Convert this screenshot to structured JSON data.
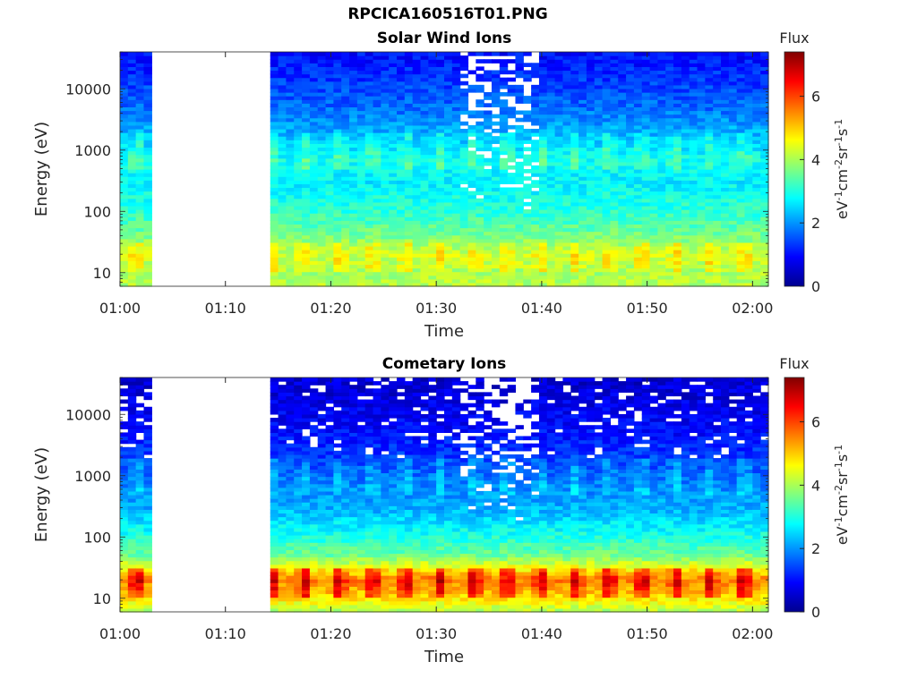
{
  "figure": {
    "title": "RPCICA160516T01.PNG"
  },
  "colorbar": {
    "label_top": "Flux",
    "label_side": "eV-1cm-2sr-1s-1",
    "ticks": [
      0,
      2,
      4,
      6
    ],
    "range": [
      0,
      7.4
    ],
    "colormap": "jet"
  },
  "chart_data": [
    {
      "type": "heatmap",
      "title": "Solar Wind Ions",
      "xlabel": "Time",
      "ylabel": "Energy (eV)",
      "x_ticks": [
        "01:00",
        "01:10",
        "01:20",
        "01:30",
        "01:40",
        "01:50",
        "02:00"
      ],
      "x_range_minutes": [
        0,
        61.5
      ],
      "y_scale": "log",
      "y_ticks": [
        10,
        100,
        1000,
        10000
      ],
      "y_range": [
        6,
        40000
      ],
      "data_gap_minutes": [
        3.0,
        13.6
      ],
      "noisy_interval_minutes": [
        32.0,
        39.0
      ],
      "profile": [
        {
          "energy": 6,
          "flux": 4.1
        },
        {
          "energy": 10,
          "flux": 4.0
        },
        {
          "energy": 20,
          "flux": 4.3
        },
        {
          "energy": 50,
          "flux": 3.5
        },
        {
          "energy": 100,
          "flux": 3.1
        },
        {
          "energy": 300,
          "flux": 2.7
        },
        {
          "energy": 700,
          "flux": 2.9
        },
        {
          "energy": 1500,
          "flux": 2.4
        },
        {
          "energy": 5000,
          "flux": 1.7
        },
        {
          "energy": 20000,
          "flux": 1.2
        },
        {
          "energy": 40000,
          "flux": 1.0
        }
      ]
    },
    {
      "type": "heatmap",
      "title": "Cometary Ions",
      "xlabel": "Time",
      "ylabel": "Energy (eV)",
      "x_ticks": [
        "01:00",
        "01:10",
        "01:20",
        "01:30",
        "01:40",
        "01:50",
        "02:00"
      ],
      "x_range_minutes": [
        0,
        61.5
      ],
      "y_scale": "log",
      "y_ticks": [
        10,
        100,
        1000,
        10000
      ],
      "y_range": [
        6,
        40000
      ],
      "data_gap_minutes": [
        3.0,
        13.6
      ],
      "noisy_interval_minutes": [
        32.0,
        39.0
      ],
      "profile": [
        {
          "energy": 6,
          "flux": 4.0
        },
        {
          "energy": 10,
          "flux": 4.8
        },
        {
          "energy": 20,
          "flux": 5.6
        },
        {
          "energy": 50,
          "flux": 3.6
        },
        {
          "energy": 100,
          "flux": 3.0
        },
        {
          "energy": 300,
          "flux": 2.2
        },
        {
          "energy": 700,
          "flux": 1.9
        },
        {
          "energy": 1500,
          "flux": 1.5
        },
        {
          "energy": 5000,
          "flux": 1.0
        },
        {
          "energy": 20000,
          "flux": 0.7
        },
        {
          "energy": 40000,
          "flux": 0.6
        }
      ]
    }
  ]
}
